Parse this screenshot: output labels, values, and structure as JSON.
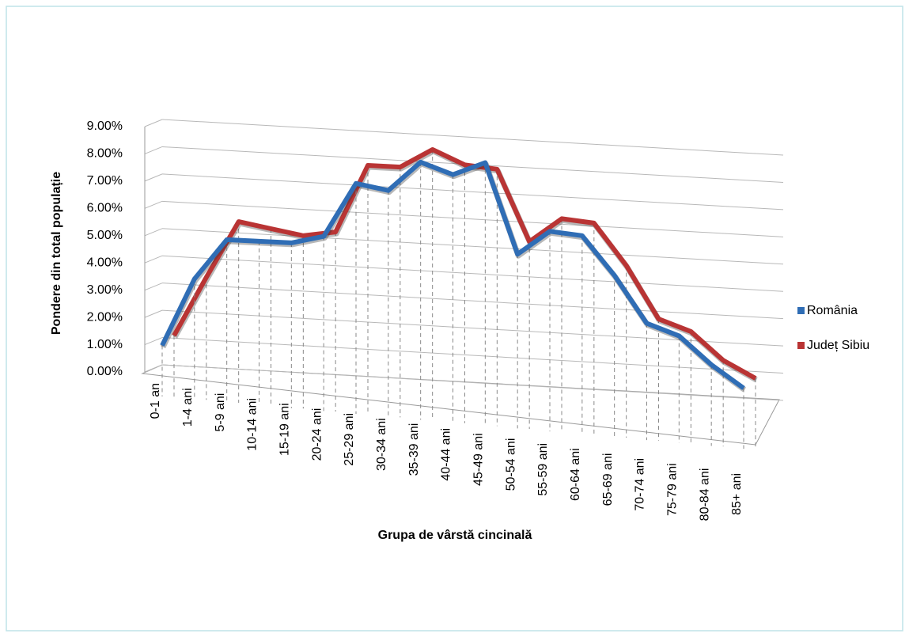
{
  "chart_data": {
    "type": "line3d",
    "x_label": "Grupa de vârstă cincinală",
    "y_label": "Pondere din total populație",
    "categories": [
      "0-1 an",
      "1-4 ani",
      "5-9 ani",
      "10-14 ani",
      "15-19 ani",
      "20-24 ani",
      "25-29 ani",
      "30-34 ani",
      "35-39 ani",
      "40-44 ani",
      "45-49 ani",
      "50-54 ani",
      "55-59 ani",
      "60-64 ani",
      "65-69 ani",
      "70-74 ani",
      "75-79 ani",
      "80-84 ani",
      "85+ ani"
    ],
    "series": [
      {
        "name": "România",
        "color": "#2f6db5",
        "values": [
          1.0,
          3.5,
          5.0,
          5.0,
          5.0,
          5.3,
          7.3,
          7.1,
          8.2,
          7.8,
          8.3,
          5.0,
          5.9,
          5.8,
          4.4,
          2.7,
          2.3,
          1.3,
          0.5
        ]
      },
      {
        "name": "Județ Sibiu",
        "color": "#b93434",
        "values": [
          1.1,
          3.3,
          5.4,
          5.2,
          5.0,
          5.2,
          7.7,
          7.7,
          8.4,
          7.9,
          7.8,
          5.2,
          6.1,
          6.0,
          4.5,
          2.6,
          2.2,
          1.2,
          0.6
        ]
      }
    ],
    "ylim": [
      0,
      9
    ],
    "yticks": [
      {
        "value": 0,
        "label": "0.00%"
      },
      {
        "value": 1,
        "label": "1.00%"
      },
      {
        "value": 2,
        "label": "2.00%"
      },
      {
        "value": 3,
        "label": "3.00%"
      },
      {
        "value": 4,
        "label": "4.00%"
      },
      {
        "value": 5,
        "label": "5.00%"
      },
      {
        "value": 6,
        "label": "6.00%"
      },
      {
        "value": 7,
        "label": "7.00%"
      },
      {
        "value": 8,
        "label": "8.00%"
      },
      {
        "value": 9,
        "label": "9.00%"
      }
    ],
    "grid": true,
    "legend": "right"
  }
}
